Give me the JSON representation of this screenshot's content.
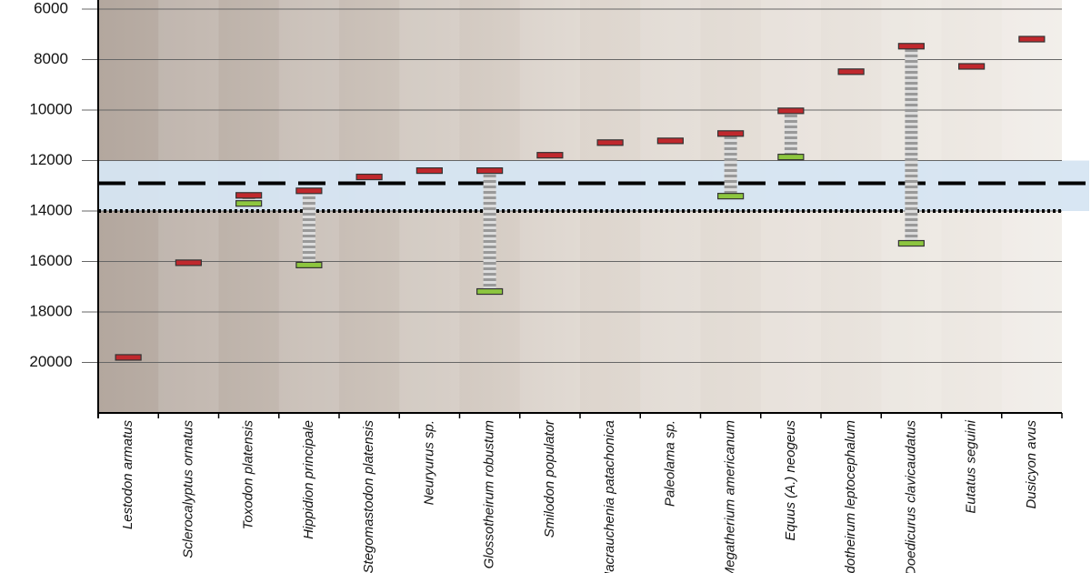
{
  "chart_data": {
    "type": "range-markers",
    "categories": [
      "Lestodon armatus",
      "Sclerocalyptus ornatus",
      "Toxodon platensis",
      "Hippidion principale",
      "Stegomastodon platensis",
      "Neuryurus sp.",
      "Glossotheirum robustum",
      "Smilodon populator",
      "Macrauchenia patachonica",
      "Paleolama sp.",
      "Megatherium americanum",
      "Equus (A.) neogeus",
      "elidotheirum leptocephalum",
      "Doedicurus clavicaudatus",
      "Eutatus seguini",
      "Dusicyon avus"
    ],
    "series": [
      {
        "color": "#c0282d",
        "values": [
          19800,
          16050,
          13380,
          13200,
          12650,
          12400,
          12400,
          11790,
          11290,
          11220,
          10930,
          10030,
          8480,
          7470,
          8270,
          7190
        ]
      },
      {
        "color": "#8dc63f",
        "values": [
          null,
          null,
          13700,
          16140,
          null,
          null,
          17190,
          null,
          null,
          null,
          13410,
          11860,
          null,
          15280,
          null,
          null
        ]
      }
    ],
    "ylim": [
      6000,
      22000
    ],
    "yticks": [
      6000,
      8000,
      10000,
      12000,
      14000,
      16000,
      18000,
      20000
    ],
    "inverted": true,
    "grid": true,
    "shaded_band": [
      12000,
      14000
    ],
    "dashed_line": 12900,
    "dotted_line": 14000
  }
}
